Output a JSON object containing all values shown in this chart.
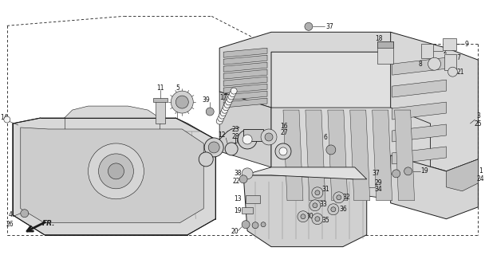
{
  "bg_color": "#ffffff",
  "line_color": "#1a1a1a",
  "fig_width": 6.08,
  "fig_height": 3.2,
  "dpi": 100,
  "gray_light": "#d8d8d8",
  "gray_mid": "#b0b0b0",
  "gray_dark": "#888888",
  "white": "#f5f5f5"
}
